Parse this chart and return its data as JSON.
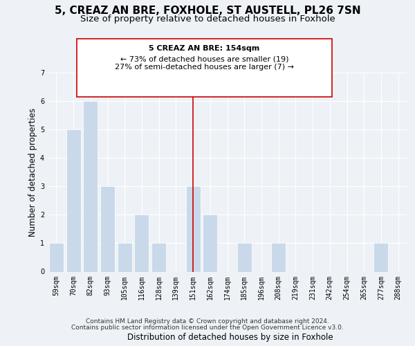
{
  "title": "5, CREAZ AN BRE, FOXHOLE, ST AUSTELL, PL26 7SN",
  "subtitle": "Size of property relative to detached houses in Foxhole",
  "xlabel": "Distribution of detached houses by size in Foxhole",
  "ylabel": "Number of detached properties",
  "categories": [
    "59sqm",
    "70sqm",
    "82sqm",
    "93sqm",
    "105sqm",
    "116sqm",
    "128sqm",
    "139sqm",
    "151sqm",
    "162sqm",
    "174sqm",
    "185sqm",
    "196sqm",
    "208sqm",
    "219sqm",
    "231sqm",
    "242sqm",
    "254sqm",
    "265sqm",
    "277sqm",
    "288sqm"
  ],
  "values": [
    1,
    5,
    6,
    3,
    1,
    2,
    1,
    0,
    3,
    2,
    0,
    1,
    0,
    1,
    0,
    0,
    0,
    0,
    0,
    1,
    0
  ],
  "bar_color": "#c9d9e9",
  "marker_index": 8,
  "marker_color": "#cc0000",
  "ylim": [
    0,
    7
  ],
  "yticks": [
    0,
    1,
    2,
    3,
    4,
    5,
    6,
    7
  ],
  "annotation_title": "5 CREAZ AN BRE: 154sqm",
  "annotation_line1": "← 73% of detached houses are smaller (19)",
  "annotation_line2": "27% of semi-detached houses are larger (7) →",
  "footer_line1": "Contains HM Land Registry data © Crown copyright and database right 2024.",
  "footer_line2": "Contains public sector information licensed under the Open Government Licence v3.0.",
  "bg_color": "#eef2f7",
  "plot_bg_color": "#eef2f7",
  "title_fontsize": 11,
  "subtitle_fontsize": 9.5,
  "axis_label_fontsize": 8.5,
  "tick_fontsize": 7,
  "annotation_fontsize": 8,
  "footer_fontsize": 6.5
}
